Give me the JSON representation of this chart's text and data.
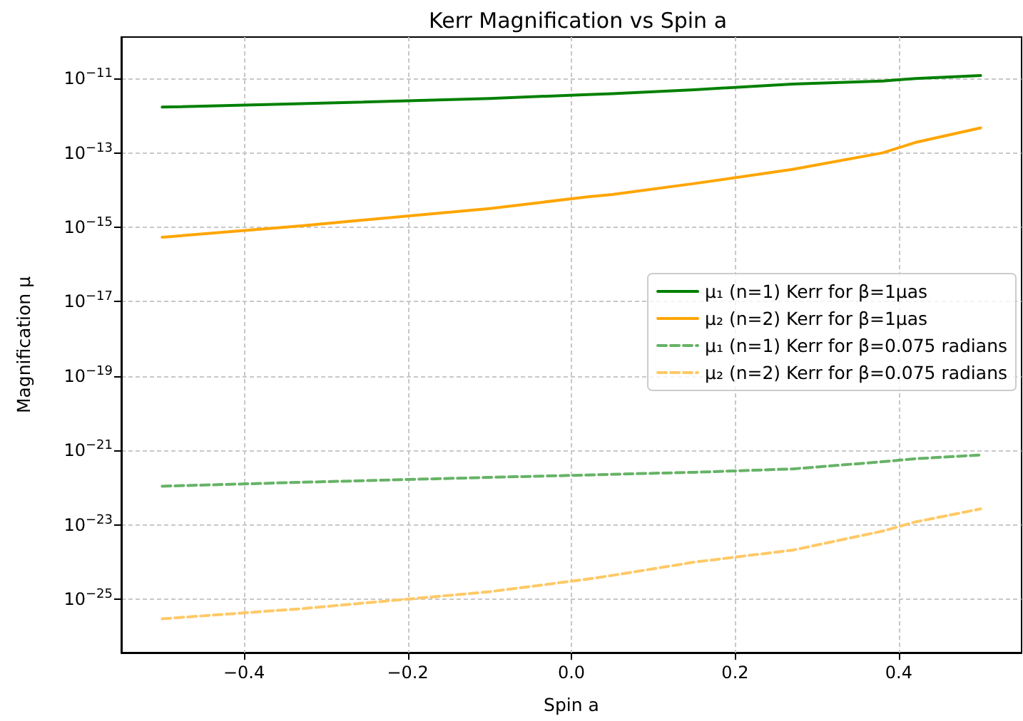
{
  "chart_data": {
    "type": "line",
    "title": "Kerr Magnification vs Spin a",
    "xlabel": "Spin a",
    "ylabel": "Magnification μ",
    "x": [
      -0.5,
      -0.33,
      -0.1,
      0.02,
      0.05,
      0.15,
      0.27,
      0.38,
      0.42,
      0.5
    ],
    "series": [
      {
        "name": "μ₁ (n=1) Kerr for β=1μas",
        "color": "#008000",
        "line_style": "solid",
        "values": [
          1.7e-12,
          2.1e-12,
          2.9e-12,
          3.7e-12,
          3.9e-12,
          5e-12,
          7.1e-12,
          8.5e-12,
          1e-11,
          1.2e-11
        ]
      },
      {
        "name": "μ₂ (n=2) Kerr for β=1μas",
        "color": "#ffa500",
        "line_style": "solid",
        "values": [
          5.4e-16,
          1.1e-15,
          3.2e-15,
          6.6e-15,
          7.6e-15,
          1.5e-14,
          3.6e-14,
          1e-13,
          1.9e-13,
          4.7e-13
        ]
      },
      {
        "name": "μ₁ (n=1) Kerr for β=0.075 radians",
        "color": "#66b366",
        "line_style": "dashed",
        "values": [
          1.1e-22,
          1.4e-22,
          1.9e-22,
          2.2e-22,
          2.3e-22,
          2.6e-22,
          3.2e-22,
          5e-22,
          6e-22,
          7.6e-22
        ]
      },
      {
        "name": "μ₂ (n=2) Kerr for β=0.075 radians",
        "color": "#ffc966",
        "line_style": "dashed",
        "values": [
          3e-26,
          5.6e-26,
          1.6e-25,
          3.5e-25,
          4.4e-25,
          1e-24,
          2.1e-24,
          6.8e-24,
          1.2e-23,
          2.7e-23
        ]
      }
    ],
    "log": "y",
    "marker": "none",
    "grid": true,
    "legend": "right",
    "xlim": [
      -0.55,
      0.55
    ],
    "xticks": [
      {
        "value": -0.4,
        "label": "−0.4"
      },
      {
        "value": -0.2,
        "label": "−0.2"
      },
      {
        "value": 0,
        "label": "0.0"
      },
      {
        "value": 0.2,
        "label": "0.2"
      },
      {
        "value": 0.4,
        "label": "0.4"
      }
    ],
    "ylim": [
      3.7e-27,
      1.3e-10
    ],
    "yticks": [
      {
        "value": 1e-25,
        "label": "10$^{−25}$"
      },
      {
        "value": 1e-23,
        "label": "10$^{−23}$"
      },
      {
        "value": 1e-21,
        "label": "10$^{−21}$"
      },
      {
        "value": 1e-19,
        "label": "10$^{−19}$"
      },
      {
        "value": 1e-17,
        "label": "10$^{−17}$"
      },
      {
        "value": 1e-15,
        "label": "10$^{−15}$"
      },
      {
        "value": 1e-13,
        "label": "10$^{−13}$"
      },
      {
        "value": 1e-11,
        "label": "10$^{−11}$"
      }
    ]
  }
}
